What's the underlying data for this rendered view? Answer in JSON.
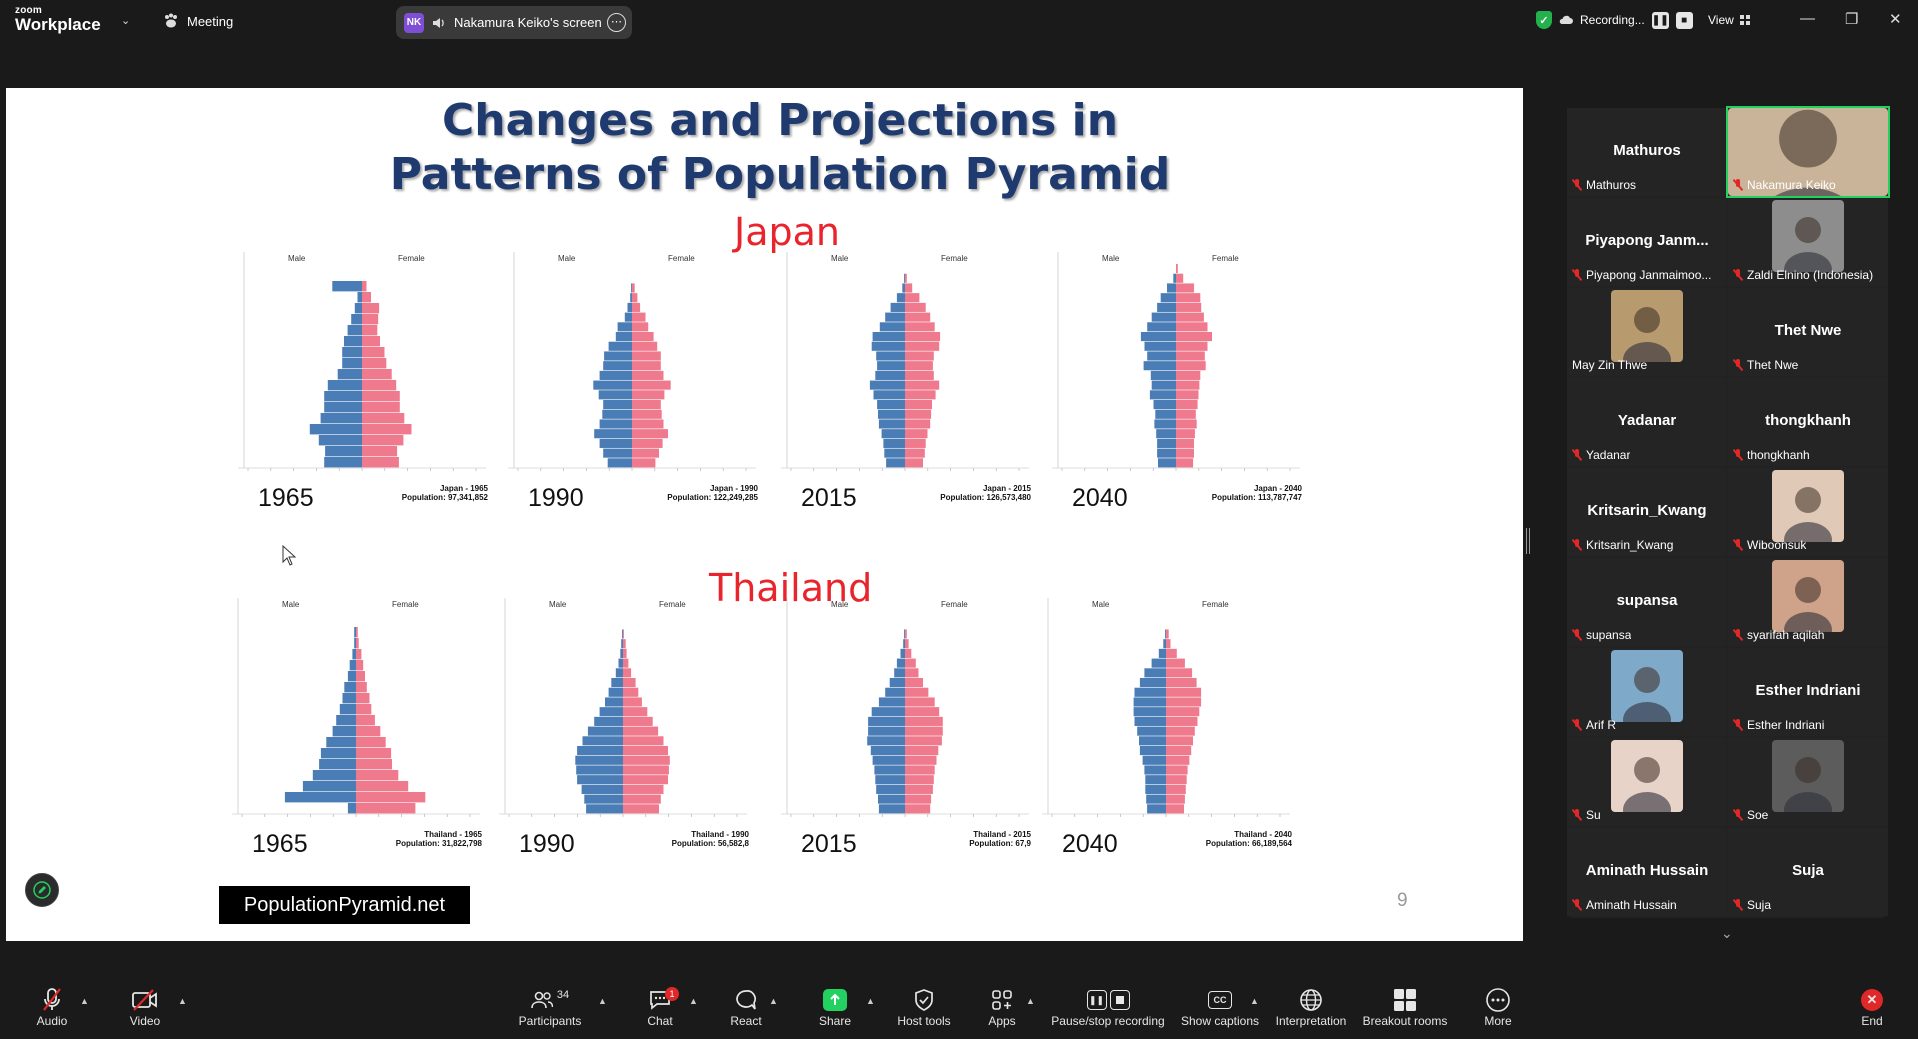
{
  "app": {
    "logo_line1": "zoom",
    "logo_line2": "Workplace",
    "meeting_label": "Meeting",
    "share_initials": "NK",
    "share_label": "Nakamura Keiko's screen",
    "recording_label": "Recording...",
    "view_label": "View"
  },
  "slide": {
    "title_line1": "Changes and Projections in",
    "title_line2": "Patterns of Population Pyramid",
    "source_label": "PopulationPyramid.net",
    "page_number": "9",
    "sex_male": "Male",
    "sex_female": "Female",
    "sections": [
      {
        "country": "Japan",
        "pyramids": [
          {
            "year": "1965",
            "caption": "Japan - 1965",
            "population": "Population: 97,341,852",
            "shape": [
              3.3,
              0.5,
              0.8,
              1.2,
              1.6,
              2.0,
              2.2,
              2.2,
              2.7,
              3.8,
              4.2,
              4.2,
              4.6,
              5.8,
              4.8,
              4.1,
              4.2
            ],
            "shape_f": [
              0.5,
              1.0,
              1.9,
              1.8,
              1.7,
              2.0,
              2.5,
              2.7,
              3.3,
              3.8,
              4.2,
              4.2,
              4.7,
              5.5,
              4.6,
              3.9,
              4.1
            ]
          },
          {
            "year": "1990",
            "caption": "Japan - 1990",
            "population": "Population: 122,249,285",
            "shape": [
              0.0,
              0.0,
              0.1,
              0.2,
              0.5,
              0.8,
              1.6,
              1.8,
              2.6,
              3.1,
              3.2,
              3.6,
              4.3,
              3.7,
              3.2,
              3.3,
              3.6,
              4.2,
              3.6,
              3.2,
              2.7
            ],
            "shape_f": [
              0.0,
              0.0,
              0.3,
              0.6,
              0.9,
              1.5,
              1.8,
              2.4,
              2.8,
              3.2,
              3.2,
              3.5,
              4.3,
              3.6,
              3.2,
              3.3,
              3.5,
              4.0,
              3.4,
              3.0,
              2.6
            ]
          },
          {
            "year": "2015",
            "caption": "Japan - 2015",
            "population": "Population: 126,573,480",
            "shape": [
              0.0,
              0.1,
              0.3,
              0.9,
              1.6,
              2.2,
              2.8,
              3.6,
              3.7,
              3.2,
              3.1,
              3.3,
              3.9,
              3.5,
              3.1,
              3.0,
              2.9,
              2.6,
              2.4,
              2.3,
              2.1
            ],
            "shape_f": [
              0.0,
              0.2,
              0.8,
              1.6,
              2.3,
              2.8,
              3.3,
              3.9,
              3.8,
              3.2,
              3.1,
              3.2,
              3.8,
              3.4,
              3.0,
              2.9,
              2.8,
              2.5,
              2.3,
              2.2,
              2.0
            ]
          },
          {
            "year": "2040",
            "caption": "Japan - 2040",
            "population": "Population: 113,787,747",
            "shape": [
              0.0,
              0.3,
              1.0,
              1.7,
              2.1,
              2.7,
              3.2,
              3.9,
              3.5,
              3.2,
              3.6,
              2.8,
              2.7,
              2.9,
              2.5,
              2.3,
              2.4,
              2.2,
              2.1,
              2.1,
              2.0
            ],
            "shape_f": [
              0.2,
              0.8,
              2.0,
              2.7,
              2.8,
              3.1,
              3.5,
              4.0,
              3.5,
              3.2,
              3.3,
              2.7,
              2.6,
              2.5,
              2.4,
              2.2,
              2.3,
              2.1,
              2.0,
              2.0,
              1.9
            ]
          }
        ]
      },
      {
        "country": "Thailand",
        "pyramids": [
          {
            "year": "1965",
            "caption": "Thailand - 1965",
            "population": "Population: 31,822,798",
            "shape": [
              0.2,
              0.2,
              0.4,
              0.7,
              0.9,
              1.3,
              1.5,
              1.8,
              2.2,
              2.6,
              3.3,
              3.9,
              4.1,
              4.8,
              5.9,
              7.9,
              0.9
            ],
            "shape_f": [
              0.2,
              0.3,
              0.6,
              0.8,
              1.0,
              1.2,
              1.5,
              1.7,
              2.1,
              2.7,
              3.3,
              3.9,
              4.0,
              4.7,
              5.8,
              7.7,
              6.6
            ]
          },
          {
            "year": "1990",
            "caption": "Thailand - 1990",
            "population": "Population: 56,582,8",
            "shape": [
              0.0,
              0.0,
              0.1,
              0.2,
              0.3,
              0.5,
              0.8,
              1.3,
              1.6,
              2.0,
              2.6,
              3.2,
              3.9,
              4.5,
              5.1,
              5.3,
              5.2,
              5.1,
              4.6,
              4.3,
              4.1
            ],
            "shape_f": [
              0.0,
              0.0,
              0.1,
              0.3,
              0.4,
              0.6,
              0.9,
              1.4,
              1.7,
              2.1,
              2.7,
              3.3,
              3.9,
              4.5,
              5.0,
              5.2,
              5.1,
              5.0,
              4.5,
              4.2,
              4.0
            ]
          },
          {
            "year": "2015",
            "caption": "Thailand - 2015",
            "population": "Population: 67,9",
            "shape": [
              0.0,
              0.0,
              0.1,
              0.2,
              0.5,
              0.9,
              1.2,
              1.7,
              2.2,
              2.9,
              3.7,
              4.1,
              4.1,
              4.2,
              3.8,
              3.6,
              3.4,
              3.3,
              3.2,
              3.0,
              2.9
            ],
            "shape_f": [
              0.0,
              0.0,
              0.2,
              0.4,
              0.7,
              1.2,
              1.5,
              2.0,
              2.6,
              3.3,
              3.8,
              4.2,
              4.2,
              4.1,
              3.7,
              3.5,
              3.3,
              3.2,
              3.1,
              2.9,
              2.8
            ]
          },
          {
            "year": "2040",
            "caption": "Thailand - 2040",
            "population": "Population: 66,189,564",
            "shape": [
              0.0,
              0.0,
              0.1,
              0.3,
              0.8,
              1.6,
              2.4,
              2.9,
              3.5,
              3.6,
              3.6,
              3.5,
              3.2,
              3.0,
              2.9,
              2.6,
              2.4,
              2.3,
              2.3,
              2.2,
              2.1
            ],
            "shape_f": [
              0.0,
              0.0,
              0.3,
              0.5,
              1.2,
              2.1,
              2.9,
              3.4,
              3.9,
              3.9,
              3.7,
              3.5,
              3.2,
              3.0,
              2.8,
              2.6,
              2.4,
              2.3,
              2.2,
              2.1,
              2.0
            ]
          }
        ]
      }
    ]
  },
  "gallery": {
    "tiles": [
      {
        "name": "Mathuros",
        "label": "Mathuros",
        "video": false
      },
      {
        "name": "Nakamura Keiko",
        "label": "Nakamura Keiko",
        "video": true,
        "active": true
      },
      {
        "name": "Piyapong Janm...",
        "label": "Piyapong Janmaimoo...",
        "video": false
      },
      {
        "name": "Zaldi Elnino (Indonesia)",
        "label": "Zaldi Elnino (Indonesia)",
        "video": true
      },
      {
        "name": "May Zin Thwe",
        "label": "May Zin Thwe",
        "video": true
      },
      {
        "name": "Thet Nwe",
        "label": "Thet Nwe",
        "video": false
      },
      {
        "name": "Yadanar",
        "label": "Yadanar",
        "video": false
      },
      {
        "name": "thongkhanh",
        "label": "thongkhanh",
        "video": false
      },
      {
        "name": "Kritsarin_Kwang",
        "label": "Kritsarin_Kwang",
        "video": false
      },
      {
        "name": "Wiboonsuk",
        "label": "Wiboonsuk",
        "video": true
      },
      {
        "name": "supansa",
        "label": "supansa",
        "video": false
      },
      {
        "name": "syarifah aqilah",
        "label": "syarifah aqilah",
        "video": true
      },
      {
        "name": "Arif R",
        "label": "Arif R",
        "video": true
      },
      {
        "name": "Esther Indriani",
        "label": "Esther Indriani",
        "video": false
      },
      {
        "name": "Su",
        "label": "Su",
        "video": true
      },
      {
        "name": "Soe",
        "label": "Soe",
        "video": true
      },
      {
        "name": "Aminath Hussain",
        "label": "Aminath Hussain",
        "video": false
      },
      {
        "name": "Suja",
        "label": "Suja",
        "video": false
      }
    ]
  },
  "toolbar": {
    "audio": "Audio",
    "video": "Video",
    "participants": "Participants",
    "participants_count": "34",
    "chat": "Chat",
    "chat_badge": "1",
    "react": "React",
    "share": "Share",
    "host_tools": "Host tools",
    "apps": "Apps",
    "pause_recording": "Pause/stop recording",
    "show_captions": "Show captions",
    "interpretation": "Interpretation",
    "breakout_rooms": "Breakout rooms",
    "more": "More",
    "end": "End"
  },
  "colors": {
    "male": "#4a7db5",
    "female": "#ef7a8e",
    "title": "#1f3a6e",
    "country": "#e8242c",
    "active_speaker": "#23d160",
    "mute_red": "#e02828"
  }
}
